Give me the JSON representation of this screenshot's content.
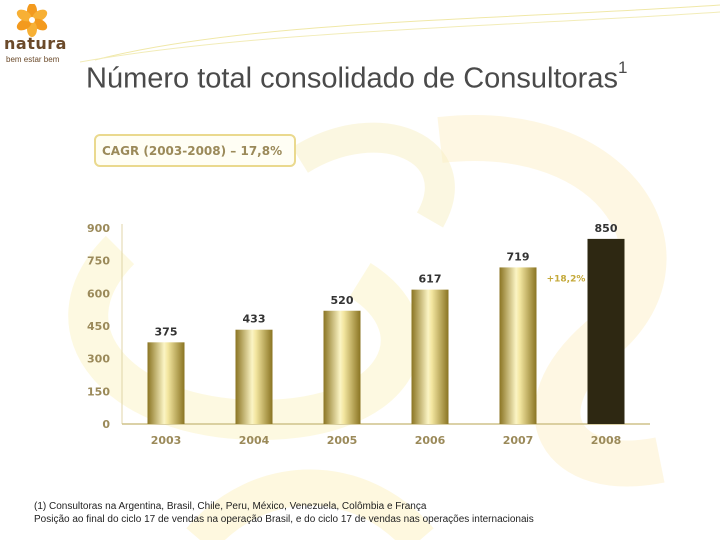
{
  "slide": {
    "title": "Número total consolidado de Consultoras",
    "title_sup": "1",
    "cagr_label": "CAGR (2003-2008) – 17,8%"
  },
  "logo": {
    "brand": "natura",
    "tagline": "bem estar bem"
  },
  "footnote": {
    "line1": "(1) Consultoras na Argentina, Brasil, Chile, Peru, México, Venezuela, Colômbia e França",
    "line2": "Posição ao final do ciclo 17 de vendas na operação Brasil, e do ciclo 17 de vendas nas operações internacionais"
  },
  "colors": {
    "gold_dark": "#8a7422",
    "gold_light": "#fbf4c4",
    "highlight_bar": "#2e2812",
    "axis_text": "#9b8a5a",
    "value_text": "#333333",
    "growth_text": "#c4a93a"
  },
  "chart_data": {
    "type": "bar",
    "title": "",
    "categories": [
      "2003",
      "2004",
      "2005",
      "2006",
      "2007",
      "2008"
    ],
    "values": [
      375,
      433,
      520,
      617,
      719,
      850
    ],
    "value_labels": [
      "375",
      "433",
      "520",
      "617",
      "719",
      "850"
    ],
    "yticks": [
      0,
      150,
      300,
      450,
      600,
      750,
      900
    ],
    "ytick_labels": [
      "0",
      "150",
      "300",
      "450",
      "600",
      "750",
      "900"
    ],
    "ylim": [
      0,
      900
    ],
    "xlabel": "",
    "ylabel": "",
    "highlight_index": 5,
    "growth_annotation": "+18,2%",
    "grid": false
  }
}
